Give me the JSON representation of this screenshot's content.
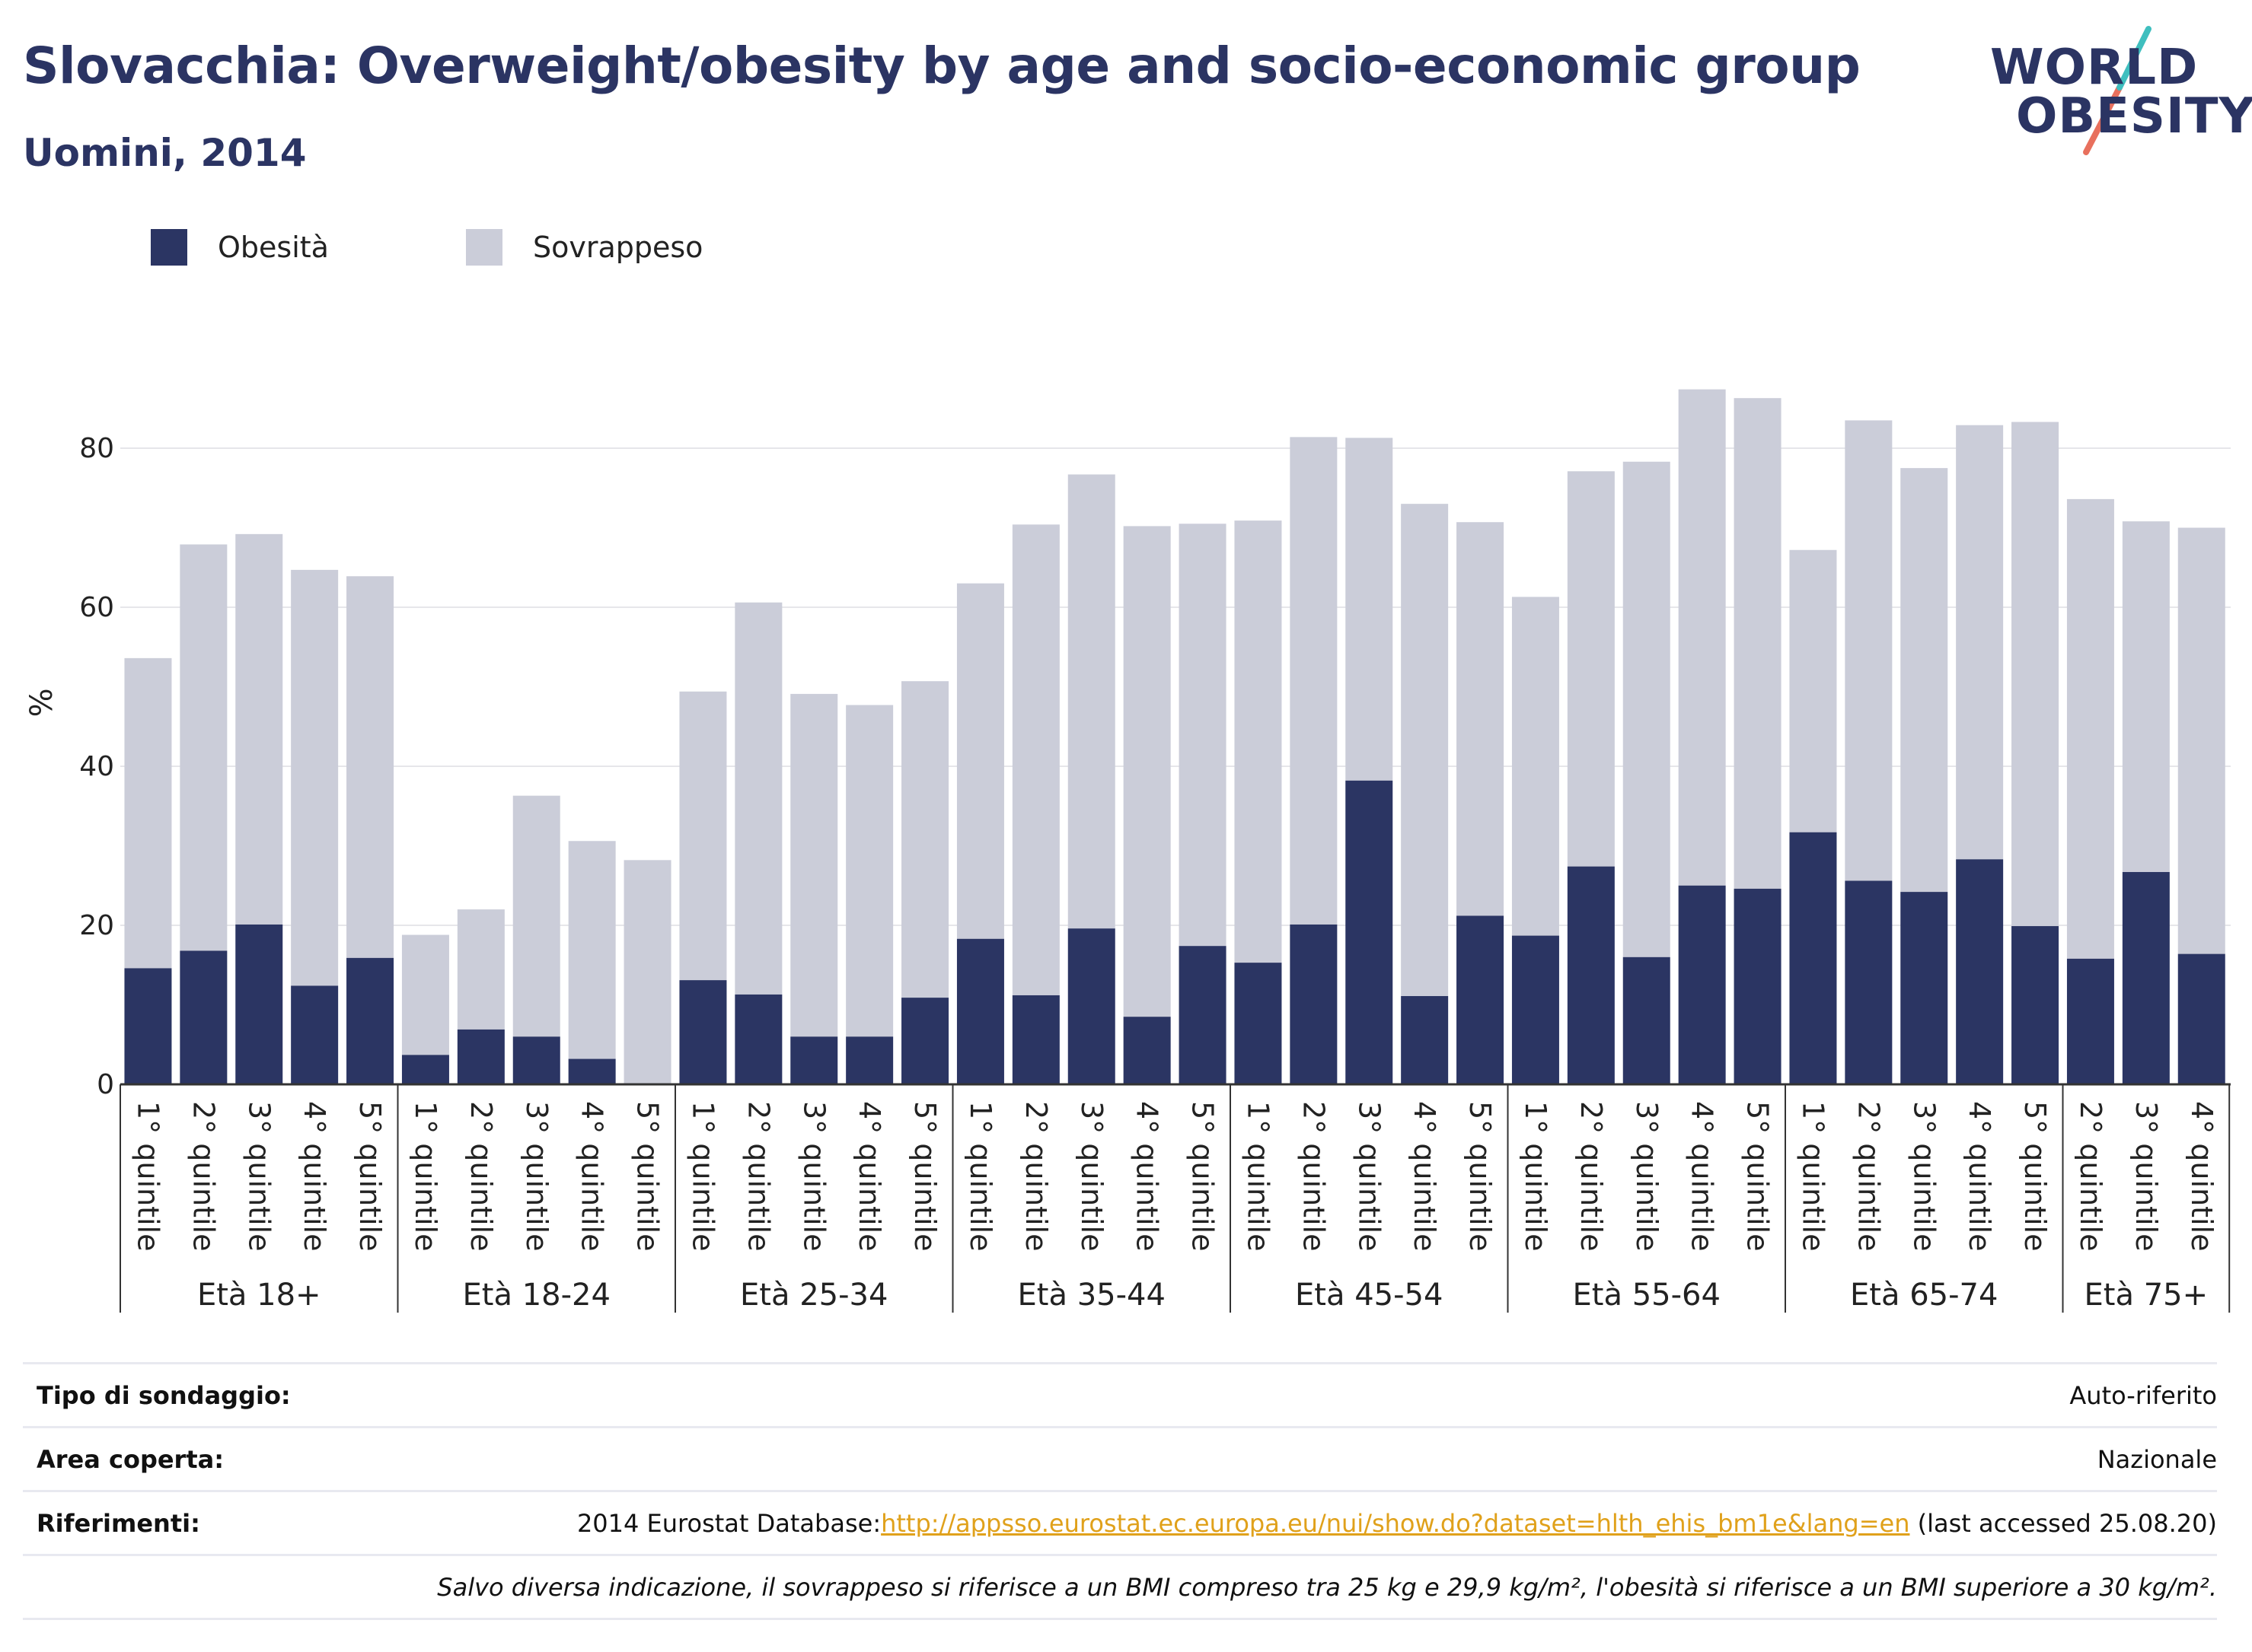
{
  "title": "Slovacchia: Overweight/obesity by age and socio-economic group",
  "subtitle": "Uomini, 2014",
  "logo": {
    "line1": "WORLD",
    "line2": "OBESITY"
  },
  "colors": {
    "obesity": "#2b3563",
    "overweight": "#cbcdd9",
    "title": "#2b3463",
    "link": "#e0a11b",
    "accent_teal": "#3fbfbf",
    "accent_coral": "#e8705d"
  },
  "legend": [
    {
      "label": "Obesità",
      "color": "#2b3563"
    },
    {
      "label": "Sovrappeso",
      "color": "#cbcdd9"
    }
  ],
  "chart_data": {
    "type": "bar",
    "stacked": true,
    "ylabel": "%",
    "ylim": [
      0,
      95
    ],
    "yticks": [
      0,
      20,
      40,
      60,
      80
    ],
    "grid": true,
    "legend_position": "top-left",
    "groups": [
      {
        "label": "Età 18+",
        "categories": [
          "1° quintile",
          "2° quintile",
          "3° quintile",
          "4° quintile",
          "5° quintile"
        ],
        "obesity": [
          14.6,
          16.8,
          20.1,
          12.4,
          15.9
        ],
        "total": [
          53.6,
          67.9,
          69.2,
          64.7,
          63.9
        ]
      },
      {
        "label": "Età 18-24",
        "categories": [
          "1° quintile",
          "2° quintile",
          "3° quintile",
          "4° quintile",
          "5° quintile"
        ],
        "obesity": [
          3.7,
          6.9,
          6.0,
          3.2,
          0.0
        ],
        "total": [
          18.8,
          22.0,
          36.3,
          30.6,
          28.2
        ]
      },
      {
        "label": "Età 25-34",
        "categories": [
          "1° quintile",
          "2° quintile",
          "3° quintile",
          "4° quintile",
          "5° quintile"
        ],
        "obesity": [
          13.1,
          11.3,
          6.0,
          6.0,
          10.9
        ],
        "total": [
          49.4,
          60.6,
          49.1,
          47.7,
          50.7
        ]
      },
      {
        "label": "Età 35-44",
        "categories": [
          "1° quintile",
          "2° quintile",
          "3° quintile",
          "4° quintile",
          "5° quintile"
        ],
        "obesity": [
          18.3,
          11.2,
          19.6,
          8.5,
          17.4
        ],
        "total": [
          63.0,
          70.4,
          76.7,
          70.2,
          70.5
        ]
      },
      {
        "label": "Età 45-54",
        "categories": [
          "1° quintile",
          "2° quintile",
          "3° quintile",
          "4° quintile",
          "5° quintile"
        ],
        "obesity": [
          15.3,
          20.1,
          38.2,
          11.1,
          21.2
        ],
        "total": [
          70.9,
          81.4,
          81.3,
          73.0,
          70.7
        ]
      },
      {
        "label": "Età 55-64",
        "categories": [
          "1° quintile",
          "2° quintile",
          "3° quintile",
          "4° quintile",
          "5° quintile"
        ],
        "obesity": [
          18.7,
          27.4,
          16.0,
          25.0,
          24.6
        ],
        "total": [
          61.3,
          77.1,
          78.3,
          87.4,
          86.3
        ]
      },
      {
        "label": "Età 65-74",
        "categories": [
          "1° quintile",
          "2° quintile",
          "3° quintile",
          "4° quintile",
          "5° quintile"
        ],
        "obesity": [
          31.7,
          25.6,
          24.2,
          28.3,
          19.9
        ],
        "total": [
          67.2,
          83.5,
          77.5,
          82.9,
          83.3
        ]
      },
      {
        "label": "Età 75+",
        "categories": [
          "2° quintile",
          "3° quintile",
          "4° quintile"
        ],
        "obesity": [
          15.8,
          26.7,
          16.4
        ],
        "total": [
          73.6,
          70.8,
          70.0
        ]
      }
    ]
  },
  "info": [
    {
      "key": "Tipo di sondaggio:",
      "value": "Auto-riferito"
    },
    {
      "key": "Area coperta:",
      "value": "Nazionale"
    },
    {
      "key": "Riferimenti:",
      "prefix": "2014 Eurostat Database:",
      "link": "http://appsso.eurostat.ec.europa.eu/nui/show.do?dataset=hlth_ehis_bm1e&lang=en",
      "suffix": " (last accessed 25.08.20)"
    },
    {
      "key": "",
      "value": "Salvo diversa indicazione, il sovrappeso si riferisce a un BMI compreso tra 25 kg e 29,9 kg/m², l'obesità si riferisce a un BMI superiore a 30 kg/m²."
    }
  ]
}
